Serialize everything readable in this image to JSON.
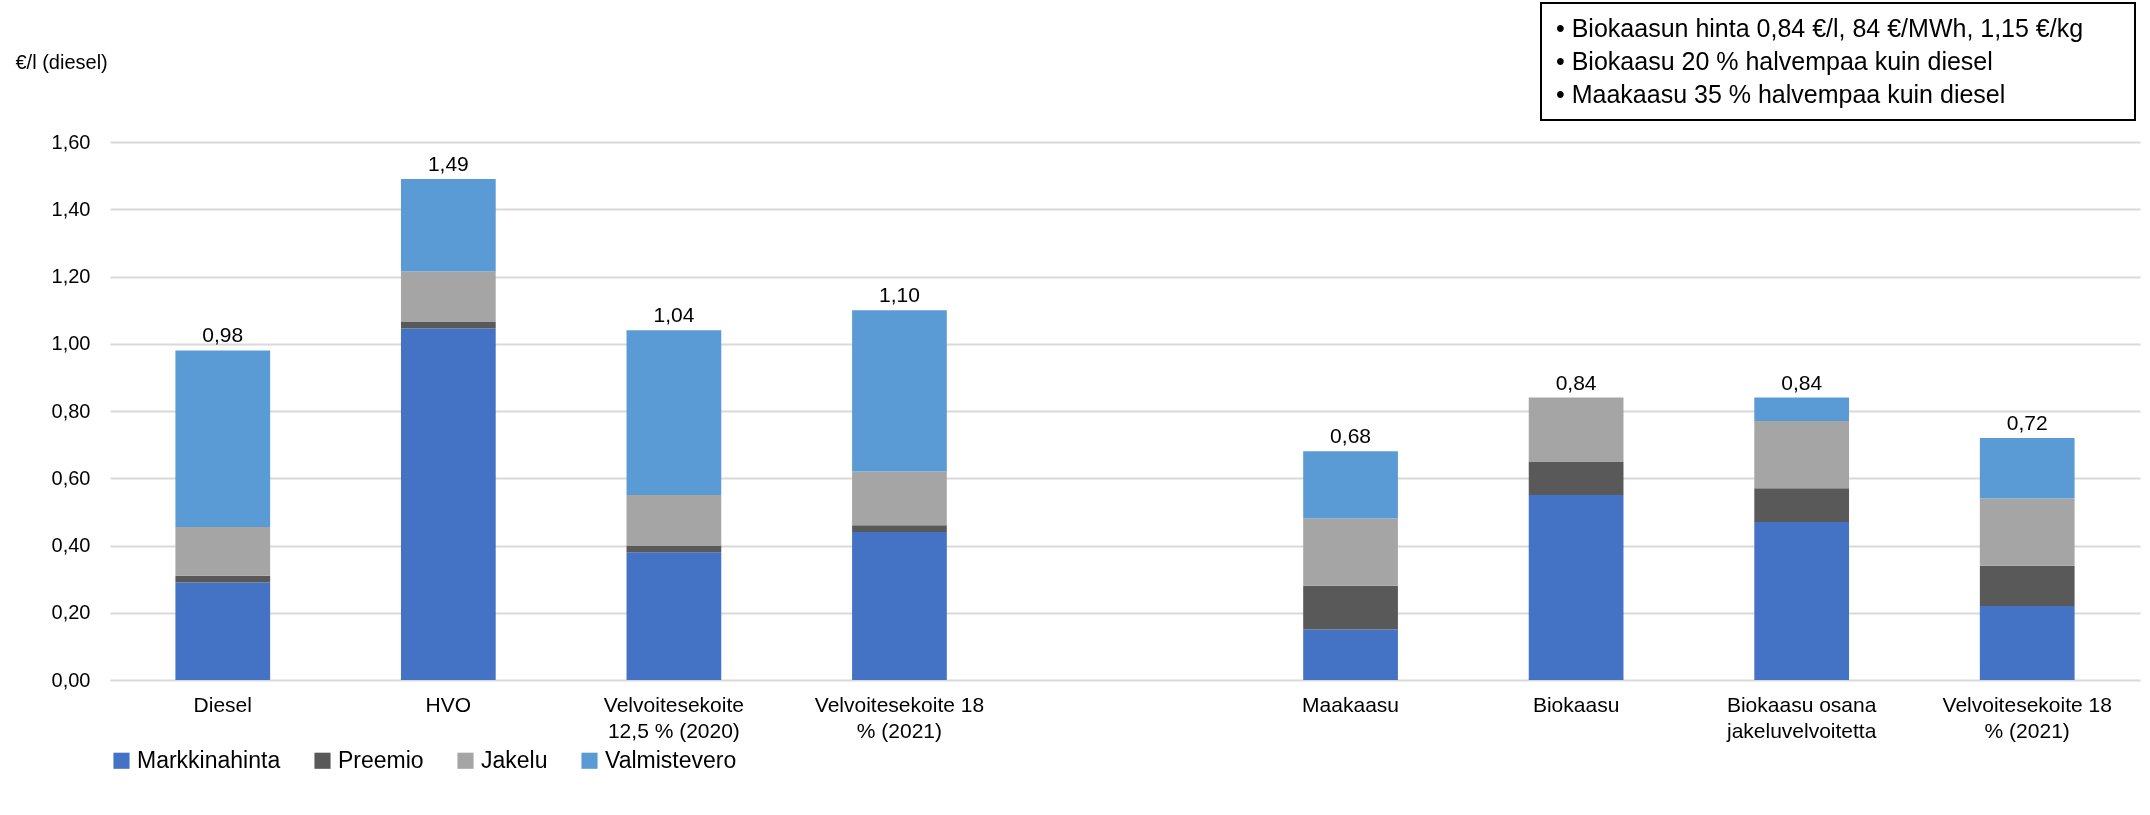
{
  "chart_data": {
    "type": "bar",
    "stacked": true,
    "ylabel": "€/l (diesel)",
    "categories": [
      "Diesel",
      "HVO",
      "Velvoitesekoite 12,5 % (2020)",
      "Velvoitesekoite 18 % (2021)",
      null,
      "Maakaasu",
      "Biokaasu",
      "Biokaasu osana jakeluvelvoitetta",
      "Velvoitesekoite 18 % (2021)"
    ],
    "series": [
      {
        "name": "Markkinahinta",
        "color": "#4472c4",
        "values": [
          0.29,
          1.045,
          0.38,
          0.44,
          null,
          0.15,
          0.55,
          0.47,
          0.22
        ]
      },
      {
        "name": "Preemio",
        "color": "#595959",
        "values": [
          0.02,
          0.02,
          0.02,
          0.02,
          null,
          0.13,
          0.1,
          0.1,
          0.12
        ]
      },
      {
        "name": "Jakelu",
        "color": "#a5a5a5",
        "values": [
          0.145,
          0.15,
          0.15,
          0.16,
          null,
          0.2,
          0.19,
          0.2,
          0.2
        ]
      },
      {
        "name": "Valmistevero",
        "color": "#5b9bd5",
        "values": [
          0.525,
          0.275,
          0.49,
          0.48,
          null,
          0.2,
          null,
          0.07,
          0.18
        ]
      }
    ],
    "totals": [
      "0,98",
      "1,49",
      "1,04",
      "1,10",
      null,
      "0,68",
      "0,84",
      "0,84",
      "0,72"
    ],
    "ylim": [
      0,
      1.6
    ],
    "yticks": [
      {
        "value": 0,
        "label": "0,00"
      },
      {
        "value": 0.2,
        "label": "0,20"
      },
      {
        "value": 0.4,
        "label": "0,40"
      },
      {
        "value": 0.6,
        "label": "0,60"
      },
      {
        "value": 0.8,
        "label": "0,80"
      },
      {
        "value": 1.0,
        "label": "1,00"
      },
      {
        "value": 1.2,
        "label": "1,20"
      },
      {
        "value": 1.4,
        "label": "1,40"
      },
      {
        "value": 1.6,
        "label": "1,60"
      }
    ],
    "grid": "y",
    "legend": "bottom",
    "annotations": [
      "• Biokaasun hinta 0,84 €/l, 84 €/MWh, 1,15 €/kg",
      "• Biokaasu 20 % halvempaa kuin diesel",
      "• Maakaasu 35 % halvempaa kuin diesel"
    ]
  }
}
